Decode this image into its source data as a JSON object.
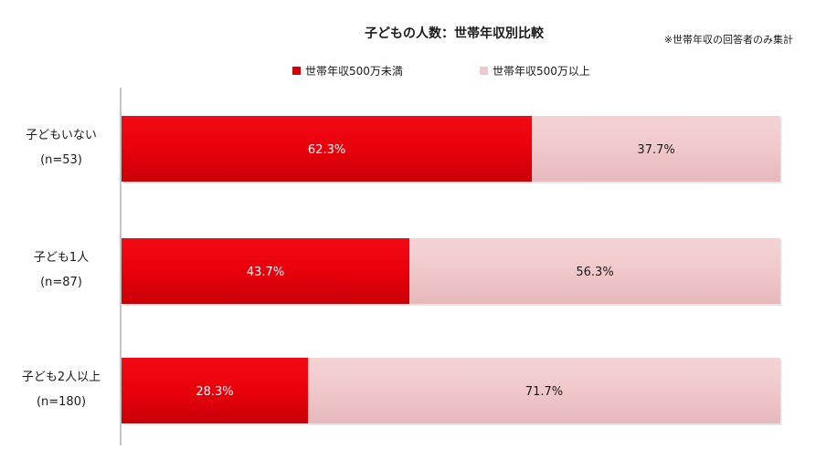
{
  "chart_data": {
    "type": "bar",
    "orientation": "horizontal",
    "stacked": "percent",
    "title": "子どもの人数：世帯年収別比較",
    "note": "※世帯年収の回答者のみ集計",
    "categories": [
      {
        "label": "子どもいない",
        "n": "(n=53)"
      },
      {
        "label": "子ども1人",
        "n": "(n=87)"
      },
      {
        "label": "子ども2人以上",
        "n": "(n=180)"
      }
    ],
    "series": [
      {
        "name": "世帯年収500万未満",
        "color": "#e8000b",
        "label_color": "#ffffff",
        "values": [
          62.3,
          43.7,
          28.3
        ],
        "value_labels": [
          "62.3%",
          "43.7%",
          "28.3%"
        ]
      },
      {
        "name": "世帯年収500万以上",
        "color": "#f0c8ca",
        "label_color": "#1a1a1a",
        "values": [
          37.7,
          56.3,
          71.7
        ],
        "value_labels": [
          "37.7%",
          "56.3%",
          "71.7%"
        ]
      }
    ],
    "xlim": [
      0,
      100
    ],
    "legend": "top-center",
    "grid": false
  }
}
